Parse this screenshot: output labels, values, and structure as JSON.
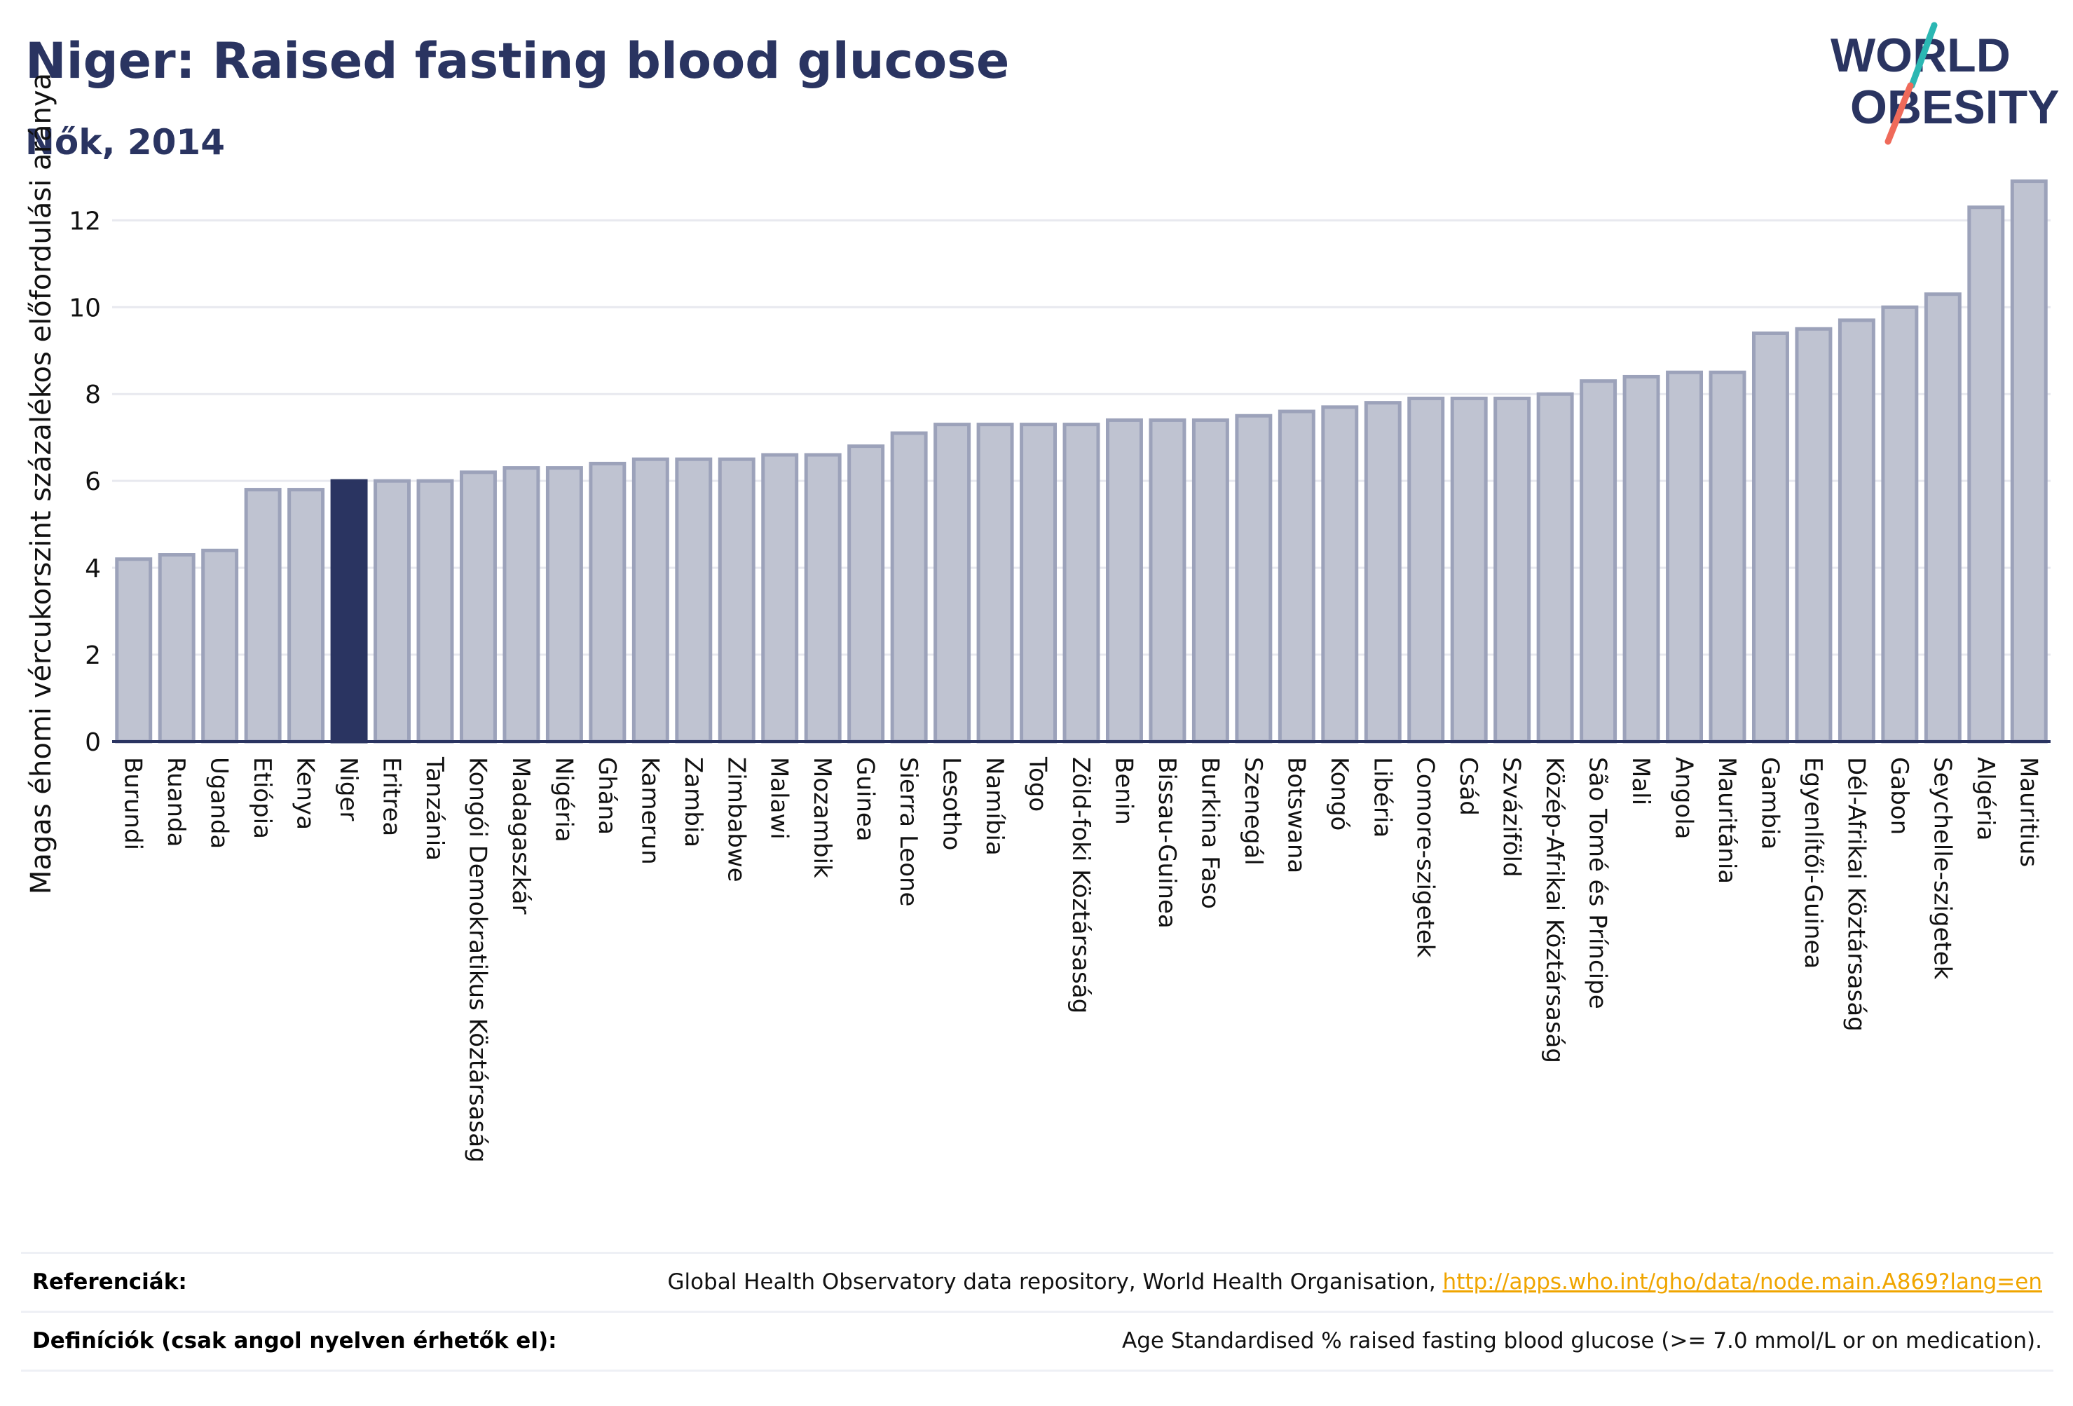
{
  "header": {
    "title": "Niger: Raised fasting blood glucose",
    "subtitle": "Nők, 2014"
  },
  "logo": {
    "line1": "WORLD",
    "line2": "OBESITY"
  },
  "colors": {
    "title": "#2a3461",
    "bar": "#bfc3d1",
    "bar_stroke": "#9ca2ba",
    "highlight": "#2a3461",
    "grid": "#e8e9ef",
    "link": "#f0a500",
    "logo_teal": "#2bb7b3",
    "logo_coral": "#ef6a5a"
  },
  "chart_data": {
    "type": "bar",
    "ylabel": "Magas éhomi vércukorszint százalékos előfordulási aránya",
    "xlabel": "",
    "ylim": [
      0,
      13.2
    ],
    "yticks": [
      0,
      2,
      4,
      6,
      8,
      10,
      12
    ],
    "grid": true,
    "highlight": "Niger",
    "categories": [
      "Burundi",
      "Ruanda",
      "Uganda",
      "Etiópia",
      "Kenya",
      "Niger",
      "Eritrea",
      "Tanzánia",
      "Kongói Demokratikus Köztársaság",
      "Madagaszkár",
      "Nigéria",
      "Ghána",
      "Kamerun",
      "Zambia",
      "Zimbabwe",
      "Malawi",
      "Mozambik",
      "Guinea",
      "Sierra Leone",
      "Lesotho",
      "Namíbia",
      "Togo",
      "Zöld-foki Köztársaság",
      "Benin",
      "Bissau-Guinea",
      "Burkina Faso",
      "Szenegál",
      "Botswana",
      "Kongó",
      "Libéria",
      "Comore-szigetek",
      "Csád",
      "Szváziföld",
      "Közép-Afrikai Köztársaság",
      "São Tomé és Príncipe",
      "Mali",
      "Angola",
      "Mauritánia",
      "Gambia",
      "Egyenlítői-Guinea",
      "Dél-Afrikai Köztársaság",
      "Gabon",
      "Seychelle-szigetek",
      "Algéria",
      "Mauritius"
    ],
    "values": [
      4.2,
      4.3,
      4.4,
      5.8,
      5.8,
      6.0,
      6.0,
      6.0,
      6.2,
      6.3,
      6.3,
      6.4,
      6.5,
      6.5,
      6.5,
      6.6,
      6.6,
      6.8,
      7.1,
      7.3,
      7.3,
      7.3,
      7.3,
      7.4,
      7.4,
      7.4,
      7.5,
      7.6,
      7.7,
      7.8,
      7.9,
      7.9,
      7.9,
      8.0,
      8.3,
      8.4,
      8.5,
      8.5,
      9.4,
      9.5,
      9.7,
      10.0,
      10.3,
      12.3,
      12.9
    ]
  },
  "footer": {
    "references_label": "Referenciák:",
    "references_text": "Global Health Observatory data repository, World Health Organisation, ",
    "references_link": "http://apps.who.int/gho/data/node.main.A869?lang=en",
    "definitions_label": "Definíciók (csak angol nyelven érhetők el):",
    "definitions_text": "Age Standardised % raised fasting blood glucose (>= 7.0 mmol/L or on medication)."
  }
}
